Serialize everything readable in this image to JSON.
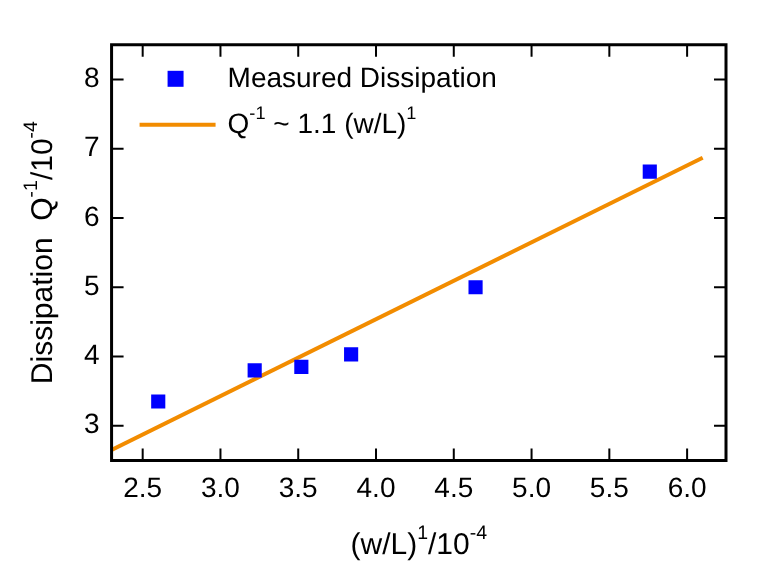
{
  "chart_data": {
    "type": "scatter",
    "xlabel": "(w/L)$^{1}$/10$^{-4}$",
    "ylabel": "Dissipation  Q$^{-1}$/10$^{-4}$",
    "xlim": [
      2.3,
      6.25
    ],
    "xticks": [
      {
        "value": 2.5,
        "label": "2.5"
      },
      {
        "value": 3,
        "label": "3.0"
      },
      {
        "value": 3.5,
        "label": "3.5"
      },
      {
        "value": 4,
        "label": "4.0"
      },
      {
        "value": 4.5,
        "label": "4.5"
      },
      {
        "value": 5,
        "label": "5.0"
      },
      {
        "value": 5.5,
        "label": "5.5"
      },
      {
        "value": 6,
        "label": "6.0"
      }
    ],
    "ylim": [
      2.5,
      8.5
    ],
    "yticks": [
      3,
      4,
      5,
      6,
      7,
      8
    ],
    "legend": "top left",
    "grid": false,
    "series": [
      {
        "name": "Measured Dissipation",
        "color": "#0000ff",
        "marker": "square",
        "x": [
          2.6,
          3.22,
          3.52,
          3.84,
          4.64,
          5.76
        ],
        "values": [
          3.35,
          3.8,
          3.85,
          4.03,
          5.0,
          6.67
        ]
      },
      {
        "name": "Q$^{-1}$ ~ 1.1 (w/L)$^{1}$",
        "type": "line",
        "color": "#f28c00",
        "marker": "none",
        "line_style": "solid",
        "x": [
          2.3,
          6.1
        ],
        "values": [
          2.65,
          6.87
        ]
      }
    ]
  }
}
